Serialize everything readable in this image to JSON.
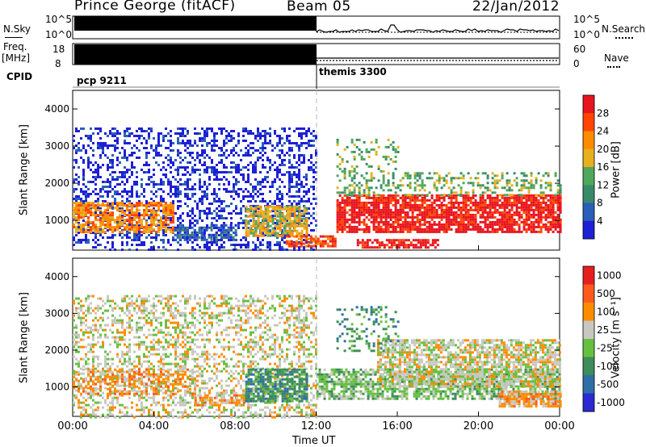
{
  "header": {
    "title": "Prince George (fitACF)",
    "beam": "Beam 05",
    "date": "22/Jan/2012"
  },
  "top_panels": {
    "nsky_label": "N.Sky",
    "nsky_ticks": [
      "10^5",
      "10^0"
    ],
    "nsearch_label": "N.Search",
    "nsearch_ticks": [
      "10^5",
      "10^0"
    ],
    "freq_label": "Freq.",
    "freq_unit": "[MHz]",
    "freq_ticks": [
      "18",
      "8"
    ],
    "nave_label": "Nave",
    "nave_ticks": [
      "60",
      "0"
    ],
    "cpid_label": "CPID",
    "cpid_segments": [
      "pcp 9211",
      "themis 3300"
    ]
  },
  "colors": {
    "power": [
      "#1f1fd6",
      "#2a5fb8",
      "#3a8a6a",
      "#4fa85a",
      "#e8b020",
      "#ff8c00",
      "#ff4500",
      "#e8141e"
    ],
    "velocity": [
      "#2a2ad0",
      "#2e6ea8",
      "#3d8c5a",
      "#66c040",
      "#c8c8c0",
      "#ff8c00",
      "#ff5a1e",
      "#e61e1e"
    ]
  },
  "chart_data": [
    {
      "type": "heatmap",
      "name": "power",
      "ylabel": "Slant Range [km]",
      "xlabel": "Time UT",
      "ylim": [
        200,
        4500
      ],
      "xlim": [
        "00:00",
        "24:00"
      ],
      "yticks": [
        "1000",
        "2000",
        "3000",
        "4000"
      ],
      "xticks": [
        "00:00",
        "04:00",
        "08:00",
        "12:00",
        "16:00",
        "20:00",
        "00:00"
      ],
      "colorbar_label": "Power [dB]",
      "colorbar_ticks": [
        "28",
        "24",
        "20",
        "16",
        "12",
        "8",
        "4"
      ],
      "regions": [
        {
          "t0": 0,
          "t1": 12,
          "r0": 200,
          "r1": 3500,
          "level": 0,
          "density": 0.35
        },
        {
          "t0": 0,
          "t1": 5,
          "r0": 700,
          "r1": 1500,
          "level": 5,
          "density": 0.7
        },
        {
          "t0": 5,
          "t1": 8,
          "r0": 500,
          "r1": 900,
          "level": 1,
          "density": 0.6
        },
        {
          "t0": 8.5,
          "t1": 11.5,
          "r0": 600,
          "r1": 1400,
          "level": 4,
          "density": 0.75
        },
        {
          "t0": 10.5,
          "t1": 13,
          "r0": 300,
          "r1": 600,
          "level": 6,
          "density": 0.7
        },
        {
          "t0": 13,
          "t1": 24,
          "r0": 700,
          "r1": 1700,
          "level": 7,
          "density": 0.8
        },
        {
          "t0": 14,
          "t1": 18,
          "r0": 300,
          "r1": 500,
          "level": 7,
          "density": 0.7
        },
        {
          "t0": 13,
          "t1": 24,
          "r0": 1700,
          "r1": 2300,
          "level": 3,
          "density": 0.35
        },
        {
          "t0": 13,
          "t1": 16,
          "r0": 2300,
          "r1": 3200,
          "level": 3,
          "density": 0.2
        }
      ]
    },
    {
      "type": "heatmap",
      "name": "velocity",
      "ylabel": "Slant Range [km]",
      "xlabel": "Time UT",
      "ylim": [
        200,
        4500
      ],
      "xlim": [
        "00:00",
        "24:00"
      ],
      "yticks": [
        "1000",
        "2000",
        "3000",
        "4000"
      ],
      "xticks": [
        "00:00",
        "04:00",
        "08:00",
        "12:00",
        "16:00",
        "20:00",
        "00:00"
      ],
      "colorbar_label": "Velocity [m s⁻¹]",
      "colorbar_ticks": [
        "1000",
        "500",
        "100",
        "25",
        "-25",
        "-100",
        "-500",
        "-1000"
      ],
      "regions": [
        {
          "t0": 0,
          "t1": 12,
          "r0": 200,
          "r1": 3500,
          "level": 4,
          "density": 0.4
        },
        {
          "t0": 0,
          "t1": 6,
          "r0": 800,
          "r1": 1500,
          "level": 5,
          "density": 0.45
        },
        {
          "t0": 6,
          "t1": 8.5,
          "r0": 500,
          "r1": 800,
          "level": 5,
          "density": 0.6
        },
        {
          "t0": 8.5,
          "t1": 11.5,
          "r0": 600,
          "r1": 1500,
          "level": 2,
          "density": 0.75
        },
        {
          "t0": 12,
          "t1": 24,
          "r0": 700,
          "r1": 1500,
          "level": 3,
          "density": 0.7
        },
        {
          "t0": 15,
          "t1": 24,
          "r0": 1000,
          "r1": 2300,
          "level": 4,
          "density": 0.7
        },
        {
          "t0": 21,
          "t1": 24,
          "r0": 500,
          "r1": 900,
          "level": 5,
          "density": 0.8
        },
        {
          "t0": 13,
          "t1": 16,
          "r0": 2000,
          "r1": 3200,
          "level": 2,
          "density": 0.25
        }
      ]
    }
  ]
}
